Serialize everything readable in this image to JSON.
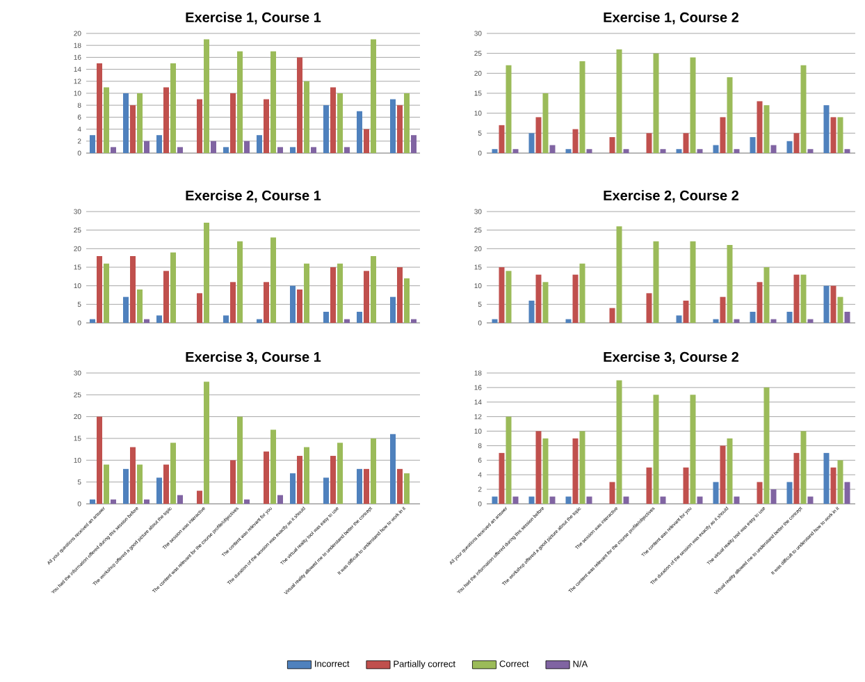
{
  "chart_data": [
    {
      "type": "bar",
      "title": "Exercise 1, Course 1",
      "categories": [
        null,
        null,
        null,
        null,
        null,
        null,
        null,
        null,
        null,
        null
      ],
      "ylim": [
        0,
        20
      ],
      "yticks": [
        0,
        2,
        4,
        6,
        8,
        10,
        12,
        14,
        16,
        18,
        20
      ],
      "grid": "y",
      "tick_labels": "y",
      "series": [
        {
          "color": "#4f81bd",
          "values": [
            3,
            10,
            3,
            0,
            1,
            3,
            1,
            8,
            7,
            9
          ]
        },
        {
          "color": "#c0504d",
          "values": [
            15,
            8,
            11,
            9,
            10,
            9,
            16,
            11,
            4,
            8
          ]
        },
        {
          "color": "#9bbb59",
          "values": [
            11,
            10,
            15,
            19,
            17,
            17,
            12,
            10,
            19,
            10
          ]
        },
        {
          "color": "#8064a2",
          "values": [
            1,
            2,
            1,
            2,
            2,
            1,
            1,
            1,
            0,
            3
          ]
        }
      ]
    },
    {
      "type": "bar",
      "title": "Exercise 1, Course 2",
      "categories": [
        null,
        null,
        null,
        null,
        null,
        null,
        null,
        null,
        null,
        null
      ],
      "ylim": [
        0,
        30
      ],
      "yticks": [
        0,
        5,
        10,
        15,
        20,
        25,
        30
      ],
      "grid": "y",
      "tick_labels": "y",
      "series": [
        {
          "color": "#4f81bd",
          "values": [
            1,
            5,
            1,
            0,
            0,
            1,
            2,
            4,
            3,
            12
          ]
        },
        {
          "color": "#c0504d",
          "values": [
            7,
            9,
            6,
            4,
            5,
            5,
            9,
            13,
            5,
            9
          ]
        },
        {
          "color": "#9bbb59",
          "values": [
            22,
            15,
            23,
            26,
            25,
            24,
            19,
            12,
            22,
            9
          ]
        },
        {
          "color": "#8064a2",
          "values": [
            1,
            2,
            1,
            1,
            1,
            1,
            1,
            2,
            1,
            1
          ]
        }
      ]
    },
    {
      "type": "bar",
      "title": "Exercise 2, Course 1",
      "categories": [
        null,
        null,
        null,
        null,
        null,
        null,
        null,
        null,
        null,
        null
      ],
      "ylim": [
        0,
        30
      ],
      "yticks": [
        0,
        5,
        10,
        15,
        20,
        25,
        30
      ],
      "grid": "y",
      "tick_labels": "y",
      "series": [
        {
          "color": "#4f81bd",
          "values": [
            1,
            7,
            2,
            0,
            2,
            1,
            10,
            3,
            3,
            7
          ]
        },
        {
          "color": "#c0504d",
          "values": [
            18,
            18,
            14,
            8,
            11,
            11,
            9,
            15,
            14,
            15
          ]
        },
        {
          "color": "#9bbb59",
          "values": [
            16,
            9,
            19,
            27,
            22,
            23,
            16,
            16,
            18,
            12
          ]
        },
        {
          "color": "#8064a2",
          "values": [
            0,
            1,
            0,
            0,
            0,
            0,
            0,
            1,
            0,
            1
          ]
        }
      ]
    },
    {
      "type": "bar",
      "title": "Exercise 2, Course 2",
      "categories": [
        null,
        null,
        null,
        null,
        null,
        null,
        null,
        null,
        null,
        null
      ],
      "ylim": [
        0,
        30
      ],
      "yticks": [
        0,
        5,
        10,
        15,
        20,
        25,
        30
      ],
      "grid": "y",
      "tick_labels": "y",
      "series": [
        {
          "color": "#4f81bd",
          "values": [
            1,
            6,
            1,
            0,
            0,
            2,
            1,
            3,
            3,
            10
          ]
        },
        {
          "color": "#c0504d",
          "values": [
            15,
            13,
            13,
            4,
            8,
            6,
            7,
            11,
            13,
            10
          ]
        },
        {
          "color": "#9bbb59",
          "values": [
            14,
            11,
            16,
            26,
            22,
            22,
            21,
            15,
            13,
            7
          ]
        },
        {
          "color": "#8064a2",
          "values": [
            0,
            0,
            0,
            0,
            0,
            0,
            1,
            1,
            1,
            3
          ]
        }
      ]
    },
    {
      "type": "bar",
      "title": "Exercise 3, Course 1",
      "categories": [
        "All your questions received an answer",
        "You had the information offered during this session before",
        "The workshop offered a good picture about the topic",
        "The session was interactive",
        "The content was relevant for the course profile/objectives",
        "The content was relevant for you",
        "The duration of the session was exactly as it should",
        "The virtual reality tool was easy to use",
        "Virtual reality allowed me to understand better the concept",
        "It was difficult to understand how to work in it"
      ],
      "ylim": [
        0,
        30
      ],
      "yticks": [
        0,
        5,
        10,
        15,
        20,
        25,
        30
      ],
      "grid": "y",
      "series": [
        {
          "color": "#4f81bd",
          "values": [
            1,
            8,
            6,
            0,
            0,
            0,
            7,
            6,
            8,
            16
          ]
        },
        {
          "color": "#c0504d",
          "values": [
            20,
            13,
            9,
            3,
            10,
            12,
            11,
            11,
            8,
            8
          ]
        },
        {
          "color": "#9bbb59",
          "values": [
            9,
            9,
            14,
            28,
            20,
            17,
            13,
            14,
            15,
            7
          ]
        },
        {
          "color": "#8064a2",
          "values": [
            1,
            1,
            2,
            0,
            1,
            2,
            0,
            0,
            0,
            0
          ]
        }
      ]
    },
    {
      "type": "bar",
      "title": "Exercise 3, Course 2",
      "categories": [
        "All your questions received an answer",
        "You had the information offered during this session before",
        "The workshop offered a good picture about the topic",
        "The session was interactive",
        "The content was relevant for the course profile/objectives",
        "The content was relevant for you",
        "The duration of the session was exactly as it should",
        "The virtual reality tool was easy to use",
        "Virtual reality allowed me to understand better the concept",
        "It was difficult to understand how to work in it"
      ],
      "ylim": [
        0,
        18
      ],
      "yticks": [
        0,
        2,
        4,
        6,
        8,
        10,
        12,
        14,
        16,
        18
      ],
      "grid": "y",
      "legend": "bottom",
      "series": [
        {
          "name": "Incorrect",
          "color": "#4f81bd",
          "values": [
            1,
            1,
            1,
            0,
            0,
            0,
            3,
            0,
            3,
            7
          ]
        },
        {
          "name": "Partially correct",
          "color": "#c0504d",
          "values": [
            7,
            10,
            9,
            3,
            5,
            5,
            8,
            3,
            7,
            5
          ]
        },
        {
          "name": "Correct",
          "color": "#9bbb59",
          "values": [
            12,
            9,
            10,
            17,
            15,
            15,
            9,
            16,
            10,
            6
          ]
        },
        {
          "name": "N/A",
          "color": "#8064a2",
          "values": [
            1,
            1,
            1,
            1,
            1,
            1,
            1,
            2,
            1,
            3
          ]
        }
      ]
    }
  ]
}
